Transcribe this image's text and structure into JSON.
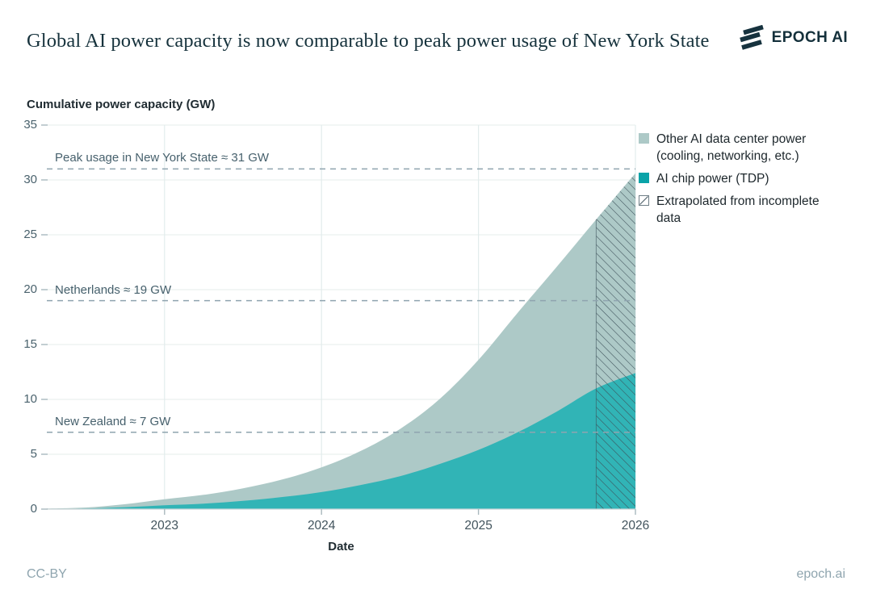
{
  "header": {
    "title": "Global AI power capacity is now comparable to peak power usage of New York State",
    "logo_text": "EPOCH AI"
  },
  "footer": {
    "license": "CC-BY",
    "site": "epoch.ai"
  },
  "colors": {
    "title_text": "#17333d",
    "chip_area": "#31b4b6",
    "other_area": "#adc9c7",
    "legend_chip": "#0aa3a8",
    "hatch_line": "#3c4f58",
    "ref_line": "#8fa4af",
    "grid_h": "#e9f0ef",
    "grid_v": "#e2ecec",
    "axis_line": "#c9d4d6",
    "tick_mark": "#a9b8be"
  },
  "legend": {
    "items": [
      {
        "label": "Other AI data center power (cooling, networking, etc.)",
        "color": "#adc9c7",
        "type": "fill"
      },
      {
        "label": "AI chip power (TDP)",
        "color": "#0aa3a8",
        "type": "fill"
      },
      {
        "label": "Extrapolated from incomplete data",
        "type": "hatch"
      }
    ]
  },
  "chart_data": {
    "type": "area",
    "stacked": true,
    "title": "Global AI power capacity is now comparable to peak power usage of New York State",
    "xlabel": "Date",
    "ylabel": "Cumulative power capacity (GW)",
    "x_domain": [
      2022.25,
      2026
    ],
    "ylim": [
      0,
      35
    ],
    "y_ticks": [
      0,
      5,
      10,
      15,
      20,
      25,
      30,
      35
    ],
    "x_ticks": [
      2023,
      2024,
      2025,
      2026
    ],
    "grid": true,
    "legend_position": "top-right",
    "x": [
      2022.25,
      2022.5,
      2022.75,
      2023,
      2023.25,
      2023.5,
      2023.75,
      2024,
      2024.25,
      2024.5,
      2024.75,
      2025,
      2025.25,
      2025.5,
      2025.75,
      2026
    ],
    "series": [
      {
        "name": "AI chip power (TDP)",
        "color": "#31b4b6",
        "values": [
          0.02,
          0.06,
          0.18,
          0.35,
          0.5,
          0.75,
          1.1,
          1.55,
          2.2,
          3.0,
          4.1,
          5.4,
          7.0,
          8.9,
          11.0,
          12.4
        ]
      },
      {
        "name": "Other AI data center power (cooling, networking, etc.)",
        "color": "#adc9c7",
        "values": [
          0.03,
          0.09,
          0.27,
          0.55,
          0.8,
          1.15,
          1.6,
          2.25,
          3.1,
          4.3,
          5.9,
          8.2,
          10.9,
          13.2,
          15.4,
          18.2
        ]
      }
    ],
    "stacked_totals": [
      0.05,
      0.15,
      0.45,
      0.9,
      1.3,
      1.9,
      2.7,
      3.8,
      5.3,
      7.3,
      10.0,
      13.6,
      17.9,
      22.1,
      26.4,
      30.6
    ],
    "extrapolated_from_x": 2025.75,
    "ref_lines": [
      {
        "label": "Peak usage in New York State ≈ 31 GW",
        "value": 31
      },
      {
        "label": "Netherlands ≈ 19 GW",
        "value": 19
      },
      {
        "label": "New Zealand ≈ 7 GW",
        "value": 7
      }
    ]
  }
}
